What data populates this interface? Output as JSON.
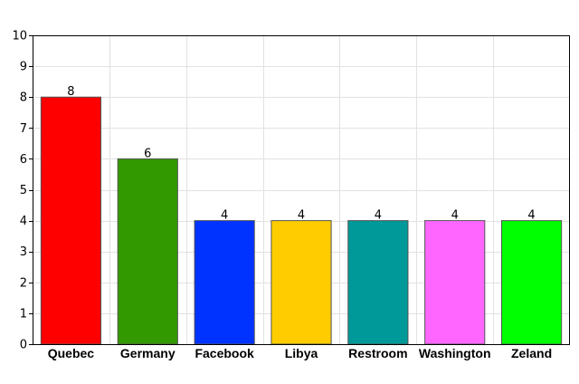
{
  "chart_data": {
    "type": "bar",
    "title": "",
    "xlabel": "",
    "ylabel": "",
    "categories": [
      "Quebec",
      "Germany",
      "Facebook",
      "Libya",
      "Restroom",
      "Washington",
      "Zeland"
    ],
    "values": [
      8,
      6,
      4,
      4,
      4,
      4,
      4
    ],
    "colors": [
      "#ff0000",
      "#339900",
      "#0033ff",
      "#ffcc00",
      "#009999",
      "#ff66ff",
      "#00ff00"
    ],
    "ylim": [
      0,
      10
    ],
    "yticks": [
      0,
      1,
      2,
      3,
      4,
      5,
      6,
      7,
      8,
      9,
      10
    ],
    "grid": true,
    "show_data_labels": true
  }
}
